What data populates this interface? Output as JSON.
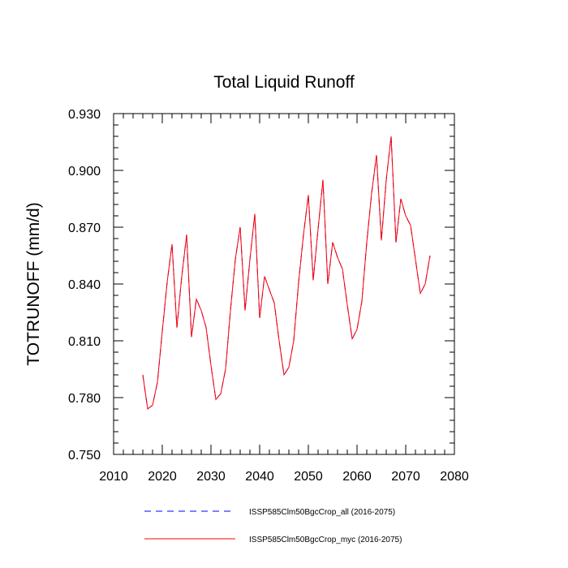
{
  "chart_data": {
    "type": "line",
    "title": "Total Liquid Runoff",
    "xlabel": "",
    "ylabel": "TOTRUNOFF  (mm/d)",
    "xlim": [
      2010,
      2080
    ],
    "ylim": [
      0.75,
      0.93
    ],
    "x_ticks": [
      "2010",
      "2020",
      "2030",
      "2040",
      "2050",
      "2060",
      "2070",
      "2080"
    ],
    "y_ticks": [
      "0.750",
      "0.780",
      "0.810",
      "0.840",
      "0.870",
      "0.900",
      "0.930"
    ],
    "grid": false,
    "legend_position": "bottom",
    "x": [
      2016,
      2017,
      2018,
      2019,
      2020,
      2021,
      2022,
      2023,
      2024,
      2025,
      2026,
      2027,
      2028,
      2029,
      2030,
      2031,
      2032,
      2033,
      2034,
      2035,
      2036,
      2037,
      2038,
      2039,
      2040,
      2041,
      2042,
      2043,
      2044,
      2045,
      2046,
      2047,
      2048,
      2049,
      2050,
      2051,
      2052,
      2053,
      2054,
      2055,
      2056,
      2057,
      2058,
      2059,
      2060,
      2061,
      2062,
      2063,
      2064,
      2065,
      2066,
      2067,
      2068,
      2069,
      2070,
      2071,
      2072,
      2073,
      2074,
      2075
    ],
    "series": [
      {
        "name": "ISSP585Clm50BgcCrop_all (2016-2075)",
        "color": "#0000ff",
        "dash": "dashed",
        "values": [
          0.792,
          0.774,
          0.776,
          0.788,
          0.815,
          0.841,
          0.861,
          0.817,
          0.844,
          0.866,
          0.812,
          0.832,
          0.826,
          0.817,
          0.797,
          0.779,
          0.782,
          0.795,
          0.826,
          0.853,
          0.87,
          0.826,
          0.853,
          0.877,
          0.822,
          0.844,
          0.837,
          0.83,
          0.81,
          0.792,
          0.796,
          0.81,
          0.841,
          0.866,
          0.887,
          0.842,
          0.869,
          0.895,
          0.84,
          0.862,
          0.854,
          0.848,
          0.829,
          0.811,
          0.816,
          0.831,
          0.862,
          0.888,
          0.908,
          0.863,
          0.895,
          0.918,
          0.862,
          0.885,
          0.876,
          0.871,
          0.853,
          0.835,
          0.84,
          0.855
        ]
      },
      {
        "name": "ISSP585Clm50BgcCrop_myc (2016-2075)",
        "color": "#ff0000",
        "dash": "solid",
        "values": [
          0.792,
          0.774,
          0.776,
          0.788,
          0.815,
          0.841,
          0.861,
          0.817,
          0.844,
          0.866,
          0.812,
          0.832,
          0.826,
          0.817,
          0.797,
          0.779,
          0.782,
          0.795,
          0.826,
          0.853,
          0.87,
          0.826,
          0.853,
          0.877,
          0.822,
          0.844,
          0.837,
          0.83,
          0.81,
          0.792,
          0.796,
          0.81,
          0.841,
          0.866,
          0.887,
          0.842,
          0.869,
          0.895,
          0.84,
          0.862,
          0.854,
          0.848,
          0.829,
          0.811,
          0.816,
          0.831,
          0.862,
          0.888,
          0.908,
          0.863,
          0.895,
          0.918,
          0.862,
          0.885,
          0.876,
          0.871,
          0.853,
          0.835,
          0.84,
          0.855
        ]
      }
    ]
  }
}
